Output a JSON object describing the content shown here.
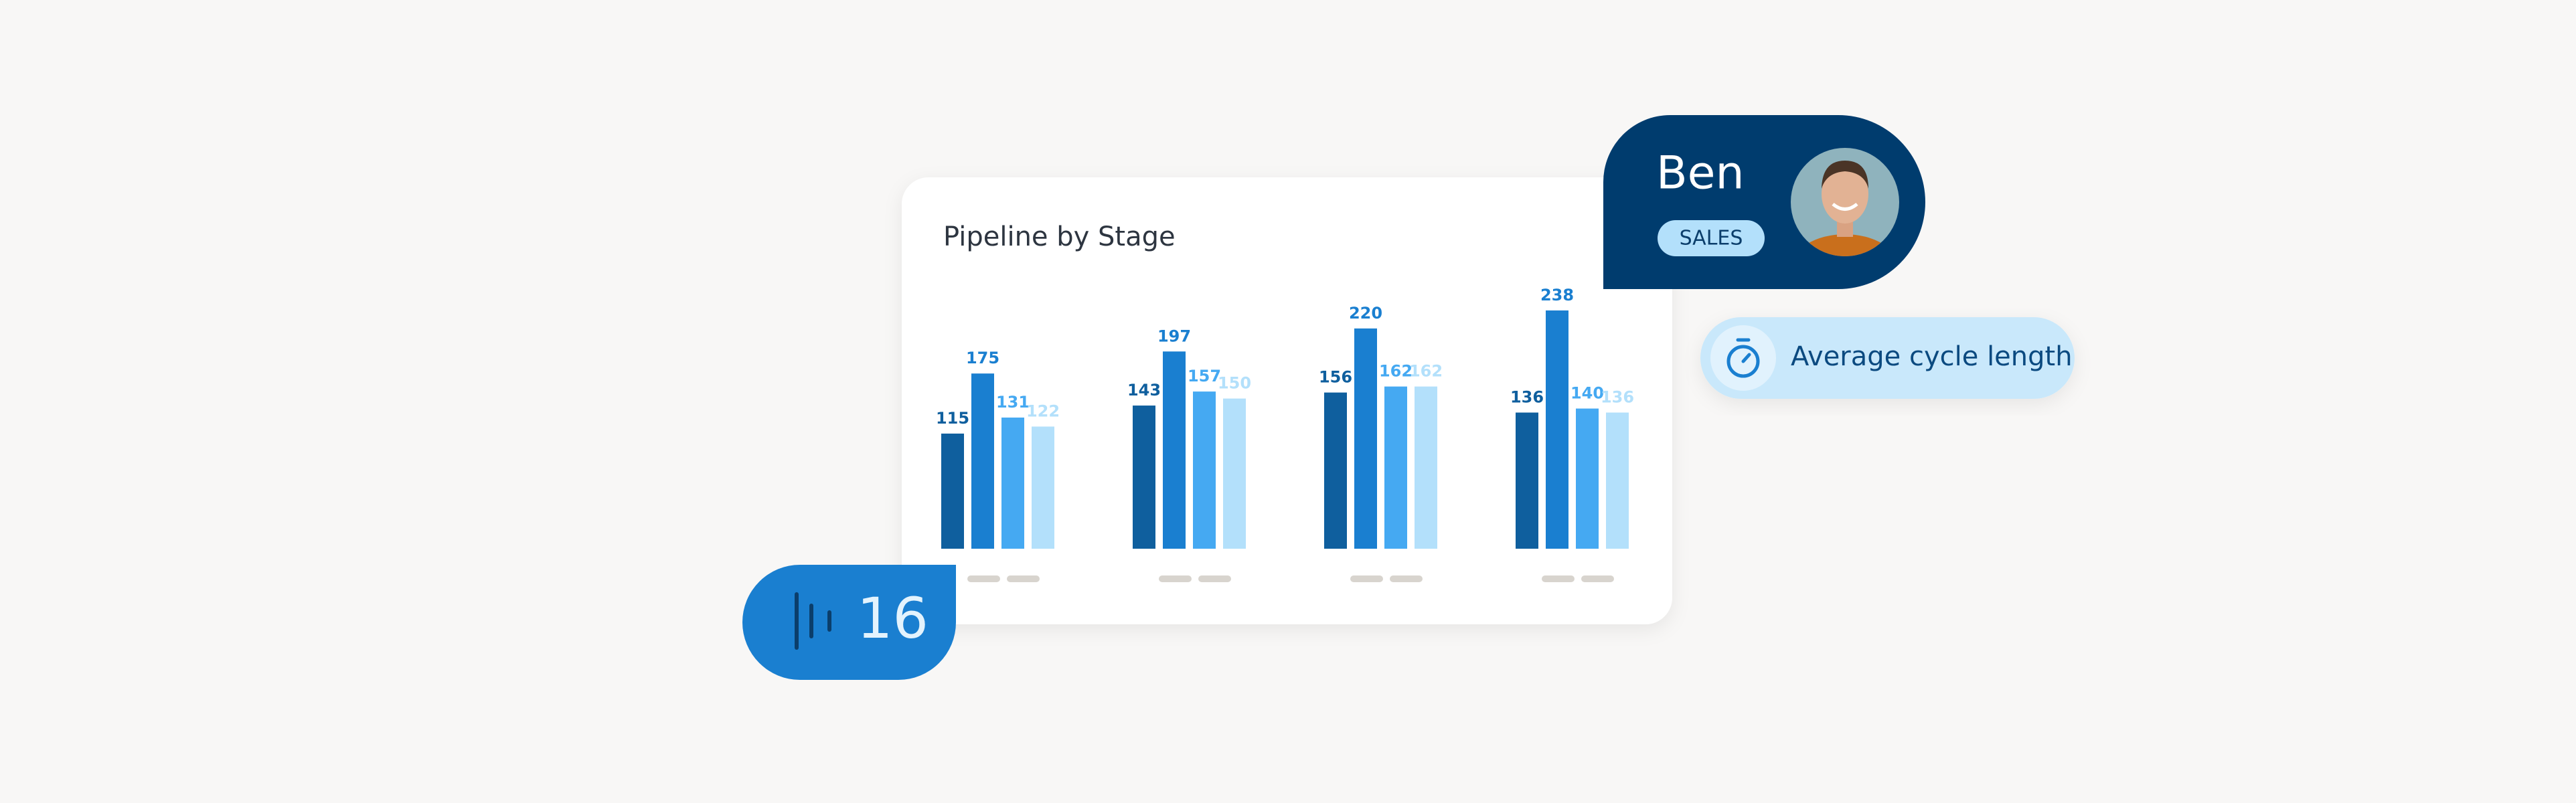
{
  "chart_data": {
    "type": "bar",
    "title": "Pipeline by Stage",
    "categories": [
      null,
      null,
      null,
      null
    ],
    "series": [
      {
        "color": "#0f5f9e",
        "values": [
          115,
          143,
          156,
          136
        ]
      },
      {
        "color": "#1a7fd0",
        "values": [
          175,
          197,
          220,
          238
        ]
      },
      {
        "color": "#45a9f2",
        "values": [
          131,
          157,
          162,
          140
        ]
      },
      {
        "color": "#b3e0fb",
        "values": [
          122,
          150,
          162,
          136
        ]
      }
    ],
    "ylim": [
      0,
      260
    ]
  },
  "profile": {
    "name": "Ben",
    "role": "SALES"
  },
  "metric": {
    "label": "Average cycle length"
  },
  "counter": {
    "value": 16
  }
}
